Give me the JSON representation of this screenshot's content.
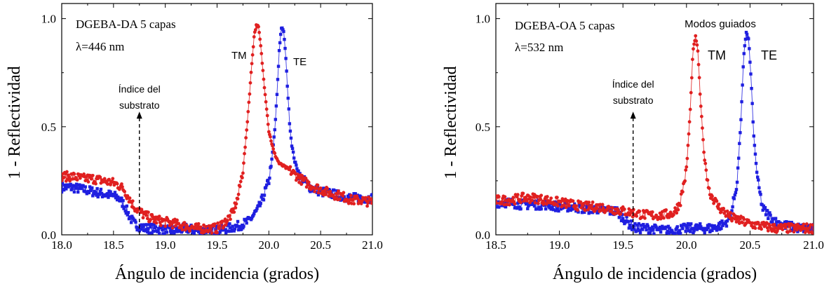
{
  "chart_data": [
    {
      "type": "scatter",
      "title": "",
      "xlabel": "Ángulo de incidencia (grados)",
      "ylabel": "1 - Reflectividad",
      "xlim": [
        18.0,
        21.0
      ],
      "ylim": [
        0.0,
        1.07
      ],
      "xticks": [
        "18.0",
        "18.5",
        "19.0",
        "19.5",
        "20.0",
        "20.5",
        "21.0"
      ],
      "yticks": [
        "0.0",
        "0.5",
        "1.0"
      ],
      "xtick_values": [
        18.0,
        18.5,
        19.0,
        19.5,
        20.0,
        20.5,
        21.0
      ],
      "ytick_values": [
        0.0,
        0.5,
        1.0
      ],
      "grid": false,
      "legend_text": [
        "DGEBA-DA 5 capas",
        "λ=446 nm"
      ],
      "annotations": {
        "substrate_label": [
          "Índice del",
          "substrato"
        ],
        "substrate_x": 18.75,
        "substrate_arrow_y": [
          0.0,
          0.57
        ],
        "tm_label": "TM",
        "te_label": "TE"
      },
      "series": [
        {
          "name": "TE",
          "color": "#1f1fe0",
          "marker": "square",
          "points": [
            [
              18.0,
              0.22
            ],
            [
              18.1,
              0.22
            ],
            [
              18.2,
              0.21
            ],
            [
              18.3,
              0.2
            ],
            [
              18.4,
              0.19
            ],
            [
              18.5,
              0.18
            ],
            [
              18.55,
              0.17
            ],
            [
              18.6,
              0.14
            ],
            [
              18.65,
              0.09
            ],
            [
              18.7,
              0.05
            ],
            [
              18.75,
              0.04
            ],
            [
              18.8,
              0.03
            ],
            [
              18.9,
              0.03
            ],
            [
              19.0,
              0.02
            ],
            [
              19.1,
              0.02
            ],
            [
              19.2,
              0.03
            ],
            [
              19.3,
              0.02
            ],
            [
              19.4,
              0.02
            ],
            [
              19.5,
              0.02
            ],
            [
              19.6,
              0.03
            ],
            [
              19.7,
              0.04
            ],
            [
              19.8,
              0.06
            ],
            [
              19.9,
              0.12
            ],
            [
              19.95,
              0.18
            ],
            [
              20.0,
              0.25
            ],
            [
              20.03,
              0.35
            ],
            [
              20.06,
              0.5
            ],
            [
              20.08,
              0.66
            ],
            [
              20.1,
              0.85
            ],
            [
              20.12,
              0.96
            ],
            [
              20.14,
              0.95
            ],
            [
              20.16,
              0.85
            ],
            [
              20.18,
              0.68
            ],
            [
              20.2,
              0.52
            ],
            [
              20.22,
              0.42
            ],
            [
              20.25,
              0.34
            ],
            [
              20.3,
              0.27
            ],
            [
              20.4,
              0.22
            ],
            [
              20.5,
              0.2
            ],
            [
              20.6,
              0.19
            ],
            [
              20.7,
              0.18
            ],
            [
              20.8,
              0.17
            ],
            [
              20.9,
              0.17
            ],
            [
              21.0,
              0.17
            ]
          ]
        },
        {
          "name": "TM",
          "color": "#e02020",
          "marker": "circle",
          "points": [
            [
              18.0,
              0.27
            ],
            [
              18.1,
              0.27
            ],
            [
              18.2,
              0.26
            ],
            [
              18.3,
              0.26
            ],
            [
              18.4,
              0.25
            ],
            [
              18.5,
              0.24
            ],
            [
              18.55,
              0.23
            ],
            [
              18.6,
              0.21
            ],
            [
              18.65,
              0.17
            ],
            [
              18.7,
              0.13
            ],
            [
              18.8,
              0.09
            ],
            [
              18.9,
              0.07
            ],
            [
              19.0,
              0.06
            ],
            [
              19.1,
              0.05
            ],
            [
              19.2,
              0.04
            ],
            [
              19.3,
              0.03
            ],
            [
              19.4,
              0.03
            ],
            [
              19.5,
              0.03
            ],
            [
              19.55,
              0.05
            ],
            [
              19.6,
              0.07
            ],
            [
              19.65,
              0.1
            ],
            [
              19.7,
              0.17
            ],
            [
              19.75,
              0.3
            ],
            [
              19.78,
              0.45
            ],
            [
              19.81,
              0.63
            ],
            [
              19.84,
              0.82
            ],
            [
              19.86,
              0.93
            ],
            [
              19.88,
              0.97
            ],
            [
              19.9,
              0.96
            ],
            [
              19.92,
              0.88
            ],
            [
              19.95,
              0.72
            ],
            [
              19.98,
              0.58
            ],
            [
              20.0,
              0.48
            ],
            [
              20.05,
              0.38
            ],
            [
              20.1,
              0.33
            ],
            [
              20.2,
              0.3
            ],
            [
              20.3,
              0.26
            ],
            [
              20.4,
              0.23
            ],
            [
              20.5,
              0.21
            ],
            [
              20.6,
              0.19
            ],
            [
              20.7,
              0.18
            ],
            [
              20.8,
              0.16
            ],
            [
              20.9,
              0.16
            ],
            [
              21.0,
              0.15
            ]
          ]
        }
      ]
    },
    {
      "type": "scatter",
      "title": "",
      "xlabel": "Ángulo de incidencia (grados)",
      "ylabel": "1 - Reflectividad",
      "xlim": [
        18.5,
        21.0
      ],
      "ylim": [
        0.0,
        1.07
      ],
      "xticks": [
        "18.5",
        "19.0",
        "19.5",
        "20.0",
        "20.5",
        "21.0"
      ],
      "yticks": [
        "0.0",
        "0.5",
        "1.0"
      ],
      "xtick_values": [
        18.5,
        19.0,
        19.5,
        20.0,
        20.5,
        21.0
      ],
      "ytick_values": [
        0.0,
        0.5,
        1.0
      ],
      "grid": false,
      "legend_text": [
        "DGEBA-OA 5 capas",
        "λ=532 nm"
      ],
      "annotations": {
        "modes_label": "Modos guiados",
        "substrate_label": [
          "Índice del",
          "substrato"
        ],
        "substrate_x": 19.58,
        "substrate_arrow_y": [
          0.0,
          0.57
        ],
        "tm_label": "TM",
        "te_label": "TE"
      },
      "series": [
        {
          "name": "TE",
          "color": "#1f1fe0",
          "marker": "square",
          "points": [
            [
              18.5,
              0.15
            ],
            [
              18.6,
              0.15
            ],
            [
              18.7,
              0.14
            ],
            [
              18.8,
              0.14
            ],
            [
              18.9,
              0.14
            ],
            [
              19.0,
              0.13
            ],
            [
              19.1,
              0.13
            ],
            [
              19.2,
              0.12
            ],
            [
              19.3,
              0.12
            ],
            [
              19.4,
              0.11
            ],
            [
              19.45,
              0.11
            ],
            [
              19.5,
              0.08
            ],
            [
              19.55,
              0.05
            ],
            [
              19.6,
              0.03
            ],
            [
              19.7,
              0.03
            ],
            [
              19.8,
              0.02
            ],
            [
              19.9,
              0.02
            ],
            [
              20.0,
              0.03
            ],
            [
              20.1,
              0.03
            ],
            [
              20.2,
              0.03
            ],
            [
              20.3,
              0.05
            ],
            [
              20.35,
              0.09
            ],
            [
              20.4,
              0.25
            ],
            [
              20.43,
              0.55
            ],
            [
              20.45,
              0.82
            ],
            [
              20.47,
              0.94
            ],
            [
              20.49,
              0.9
            ],
            [
              20.51,
              0.7
            ],
            [
              20.53,
              0.45
            ],
            [
              20.56,
              0.25
            ],
            [
              20.6,
              0.12
            ],
            [
              20.7,
              0.06
            ],
            [
              20.8,
              0.04
            ],
            [
              20.9,
              0.03
            ],
            [
              21.0,
              0.03
            ]
          ]
        },
        {
          "name": "TM",
          "color": "#e02020",
          "marker": "circle",
          "points": [
            [
              18.5,
              0.16
            ],
            [
              18.6,
              0.16
            ],
            [
              18.7,
              0.17
            ],
            [
              18.8,
              0.17
            ],
            [
              18.9,
              0.16
            ],
            [
              19.0,
              0.15
            ],
            [
              19.1,
              0.14
            ],
            [
              19.2,
              0.13
            ],
            [
              19.3,
              0.13
            ],
            [
              19.4,
              0.12
            ],
            [
              19.5,
              0.11
            ],
            [
              19.6,
              0.1
            ],
            [
              19.7,
              0.09
            ],
            [
              19.8,
              0.09
            ],
            [
              19.9,
              0.1
            ],
            [
              19.95,
              0.15
            ],
            [
              20.0,
              0.3
            ],
            [
              20.03,
              0.58
            ],
            [
              20.05,
              0.84
            ],
            [
              20.07,
              0.92
            ],
            [
              20.09,
              0.85
            ],
            [
              20.11,
              0.62
            ],
            [
              20.14,
              0.36
            ],
            [
              20.18,
              0.2
            ],
            [
              20.25,
              0.13
            ],
            [
              20.35,
              0.08
            ],
            [
              20.5,
              0.05
            ],
            [
              20.6,
              0.04
            ],
            [
              20.7,
              0.03
            ],
            [
              20.8,
              0.03
            ],
            [
              20.9,
              0.03
            ],
            [
              21.0,
              0.03
            ]
          ]
        }
      ]
    }
  ]
}
